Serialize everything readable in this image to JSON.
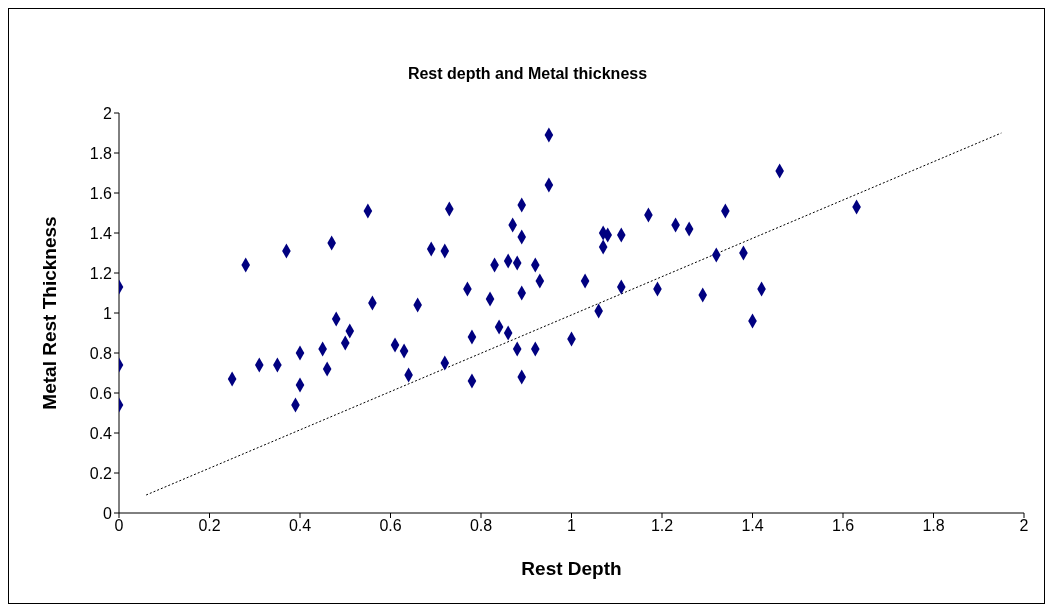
{
  "chart_data": {
    "type": "scatter",
    "title": "Rest depth and Metal thickness",
    "xlabel": "Rest Depth",
    "ylabel": "Metal Rest Thickness",
    "xlim": [
      0,
      2
    ],
    "xticks": [
      0,
      0.2,
      0.4,
      0.6,
      0.8,
      1,
      1.2,
      1.4,
      1.6,
      1.8,
      2
    ],
    "ylim": [
      0,
      2
    ],
    "yticks": [
      0,
      0.2,
      0.4,
      0.6,
      0.8,
      1,
      1.2,
      1.4,
      1.6,
      1.8,
      2
    ],
    "grid": false,
    "legend": false,
    "marker": "diamond",
    "series": [
      {
        "color": "#000080",
        "x": [
          0,
          0,
          0,
          0.25,
          0.28,
          0.31,
          0.35,
          0.37,
          0.39,
          0.4,
          0.4,
          0.45,
          0.46,
          0.47,
          0.48,
          0.5,
          0.51,
          0.55,
          0.56,
          0.61,
          0.63,
          0.64,
          0.66,
          0.69,
          0.72,
          0.72,
          0.73,
          0.77,
          0.78,
          0.78,
          0.82,
          0.83,
          0.84,
          0.86,
          0.86,
          0.87,
          0.88,
          0.88,
          0.89,
          0.89,
          0.89,
          0.89,
          0.92,
          0.92,
          0.93,
          0.95,
          0.95,
          1.0,
          1.03,
          1.06,
          1.07,
          1.07,
          1.08,
          1.11,
          1.11,
          1.17,
          1.19,
          1.23,
          1.26,
          1.29,
          1.32,
          1.34,
          1.38,
          1.4,
          1.42,
          1.46,
          1.63
        ],
        "values": [
          1.13,
          0.74,
          0.54,
          0.67,
          1.24,
          0.74,
          0.74,
          1.31,
          0.54,
          0.8,
          0.64,
          0.82,
          0.72,
          1.35,
          0.97,
          0.85,
          0.91,
          1.51,
          1.05,
          0.84,
          0.81,
          0.69,
          1.04,
          1.32,
          1.31,
          0.75,
          1.52,
          1.12,
          0.88,
          0.66,
          1.07,
          1.24,
          0.93,
          1.26,
          0.9,
          1.44,
          1.25,
          0.82,
          1.54,
          1.38,
          1.1,
          0.68,
          1.24,
          0.82,
          1.16,
          1.89,
          1.64,
          0.87,
          1.16,
          1.01,
          1.4,
          1.33,
          1.39,
          1.39,
          1.13,
          1.49,
          1.12,
          1.44,
          1.42,
          1.09,
          1.29,
          1.51,
          1.3,
          0.96,
          1.12,
          1.71,
          1.53
        ]
      },
      {
        "type": "line",
        "color": "#000000",
        "line_style": "dotted",
        "marker": "none",
        "x": [
          0.06,
          1.95
        ],
        "values": [
          0.09,
          1.9
        ]
      }
    ]
  }
}
